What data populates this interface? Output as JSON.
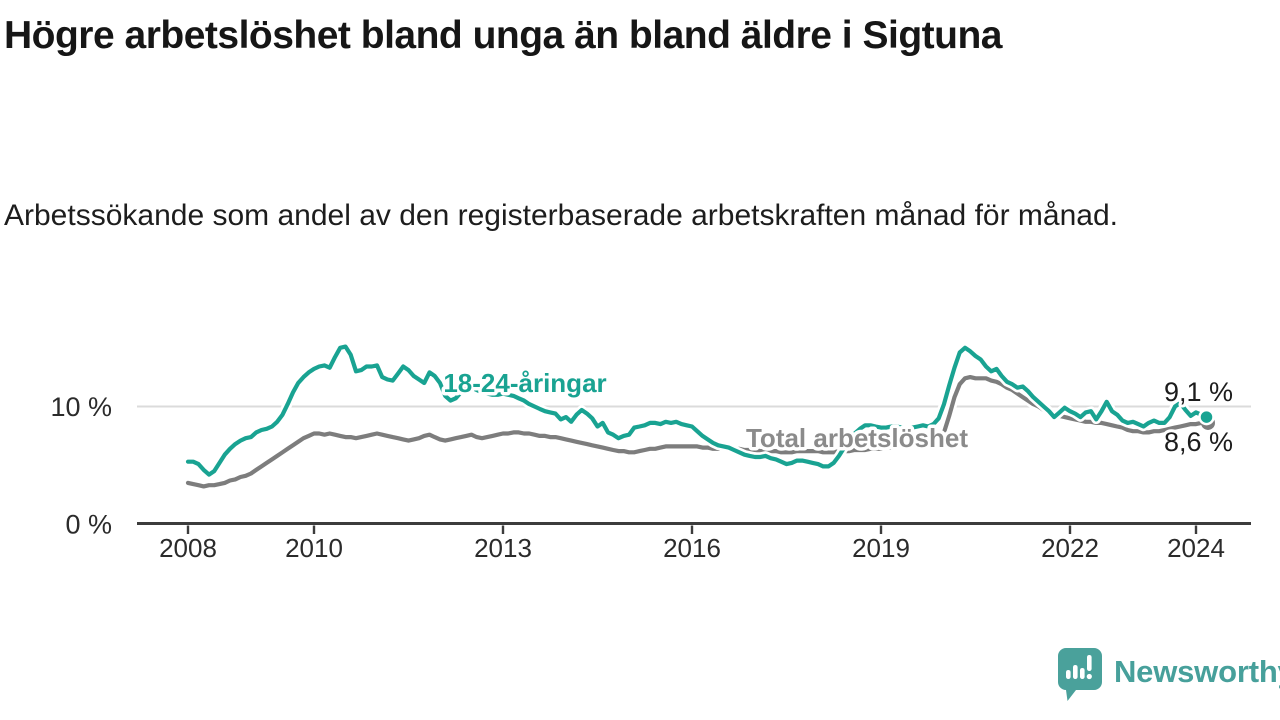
{
  "branding": {
    "logo_text": "Newsworthy",
    "logo_icon": "newsworthy-speech-bubble-bar-chart-icon",
    "logo_color": "#4aa19b"
  },
  "chart_data": {
    "type": "line",
    "title": "Högre arbetslöshet bland unga än bland äldre i Sigtuna",
    "subtitle": "Arbetssökande som andel av den registerbaserade arbetskraften månad för månad.",
    "x_unit": "monthly, fractional years",
    "x_start": 2008.0,
    "x_step_years": 0.083333,
    "xlim": [
      2007.2,
      2024.9
    ],
    "ylim": [
      0,
      16.5
    ],
    "grid": "single horizontal gridline at 10 %",
    "legend_position": "inline labels on lines",
    "x_ticks": [
      {
        "value": 2008,
        "label": "2008"
      },
      {
        "value": 2010,
        "label": "2010"
      },
      {
        "value": 2013,
        "label": "2013"
      },
      {
        "value": 2016,
        "label": "2016"
      },
      {
        "value": 2019,
        "label": "2019"
      },
      {
        "value": 2022,
        "label": "2022"
      },
      {
        "value": 2024,
        "label": "2024"
      }
    ],
    "y_ticks": [
      {
        "value": 10,
        "label": "10 %"
      },
      {
        "value": 0,
        "label": "0 %"
      }
    ],
    "series": [
      {
        "name": "Total arbetslöshet",
        "label": "Total arbetslöshet",
        "color": "#7d7d7d",
        "label_color": "#8b8b8b",
        "end_label": "8,6 %",
        "end_value": 8.6,
        "values": [
          3.5,
          3.4,
          3.3,
          3.2,
          3.3,
          3.3,
          3.4,
          3.5,
          3.7,
          3.8,
          4.0,
          4.1,
          4.3,
          4.6,
          4.9,
          5.2,
          5.5,
          5.8,
          6.1,
          6.4,
          6.7,
          7.0,
          7.3,
          7.5,
          7.7,
          7.7,
          7.6,
          7.7,
          7.6,
          7.5,
          7.4,
          7.4,
          7.3,
          7.4,
          7.5,
          7.6,
          7.7,
          7.6,
          7.5,
          7.4,
          7.3,
          7.2,
          7.1,
          7.2,
          7.3,
          7.5,
          7.6,
          7.4,
          7.2,
          7.1,
          7.2,
          7.3,
          7.4,
          7.5,
          7.6,
          7.4,
          7.3,
          7.4,
          7.5,
          7.6,
          7.7,
          7.7,
          7.8,
          7.8,
          7.7,
          7.7,
          7.6,
          7.5,
          7.5,
          7.4,
          7.4,
          7.3,
          7.2,
          7.1,
          7.0,
          6.9,
          6.8,
          6.7,
          6.6,
          6.5,
          6.4,
          6.3,
          6.2,
          6.2,
          6.1,
          6.1,
          6.2,
          6.3,
          6.4,
          6.4,
          6.5,
          6.6,
          6.6,
          6.6,
          6.6,
          6.6,
          6.6,
          6.6,
          6.5,
          6.5,
          6.4,
          6.4,
          6.5,
          6.5,
          6.4,
          6.4,
          6.3,
          6.3,
          6.3,
          6.2,
          6.2,
          6.2,
          6.2,
          6.1,
          6.1,
          6.1,
          6.2,
          6.2,
          6.2,
          6.2,
          6.2,
          6.1,
          6.1,
          6.1,
          6.2,
          6.2,
          6.2,
          6.3,
          6.3,
          6.3,
          6.4,
          6.4,
          6.4,
          6.5,
          6.5,
          6.6,
          6.6,
          6.7,
          6.7,
          6.8,
          6.8,
          6.9,
          7.0,
          7.2,
          7.8,
          9.2,
          10.8,
          11.9,
          12.4,
          12.5,
          12.4,
          12.4,
          12.4,
          12.2,
          12.1,
          11.9,
          11.6,
          11.4,
          11.1,
          10.8,
          10.5,
          10.2,
          10.0,
          9.7,
          9.5,
          9.3,
          9.2,
          9.1,
          9.0,
          8.9,
          8.8,
          8.7,
          8.7,
          8.6,
          8.6,
          8.5,
          8.4,
          8.3,
          8.2,
          8.0,
          7.9,
          7.9,
          7.8,
          7.8,
          7.9,
          7.9,
          8.0,
          8.1,
          8.2,
          8.3,
          8.4,
          8.5,
          8.5,
          8.6,
          8.6
        ]
      },
      {
        "name": "18-24-åringar",
        "label": "18-24-åringar",
        "color": "#19a392",
        "label_color": "#19a392",
        "end_label": "9,1 %",
        "end_value": 9.1,
        "values": [
          5.3,
          5.3,
          5.1,
          4.6,
          4.2,
          4.5,
          5.2,
          5.9,
          6.4,
          6.8,
          7.1,
          7.3,
          7.4,
          7.8,
          8.0,
          8.1,
          8.3,
          8.7,
          9.3,
          10.2,
          11.2,
          12.0,
          12.5,
          12.9,
          13.2,
          13.4,
          13.5,
          13.3,
          14.2,
          15.0,
          15.1,
          14.4,
          13.0,
          13.1,
          13.4,
          13.4,
          13.5,
          12.5,
          12.3,
          12.2,
          12.8,
          13.4,
          13.1,
          12.6,
          12.3,
          12.0,
          12.9,
          12.6,
          12.0,
          10.9,
          10.5,
          10.7,
          11.2,
          11.5,
          11.6,
          11.4,
          11.2,
          11.1,
          11.0,
          11.0,
          11.1,
          11.0,
          10.9,
          10.7,
          10.5,
          10.2,
          10.0,
          9.8,
          9.6,
          9.5,
          9.4,
          8.9,
          9.1,
          8.7,
          9.3,
          9.7,
          9.4,
          9.0,
          8.3,
          8.6,
          7.8,
          7.6,
          7.3,
          7.5,
          7.6,
          8.2,
          8.3,
          8.4,
          8.6,
          8.6,
          8.5,
          8.7,
          8.6,
          8.7,
          8.5,
          8.4,
          8.3,
          7.9,
          7.5,
          7.2,
          6.9,
          6.7,
          6.6,
          6.5,
          6.3,
          6.1,
          5.9,
          5.8,
          5.7,
          5.7,
          5.8,
          5.6,
          5.5,
          5.3,
          5.1,
          5.2,
          5.4,
          5.4,
          5.3,
          5.2,
          5.1,
          4.9,
          4.9,
          5.2,
          5.8,
          6.5,
          7.1,
          7.7,
          8.1,
          8.4,
          8.4,
          8.3,
          8.2,
          8.2,
          8.3,
          8.3,
          8.2,
          8.1,
          8.2,
          8.3,
          8.4,
          8.3,
          8.5,
          9.0,
          10.2,
          11.8,
          13.3,
          14.6,
          15.0,
          14.7,
          14.3,
          14.0,
          13.4,
          13.0,
          13.2,
          12.6,
          12.1,
          11.9,
          11.6,
          11.7,
          11.3,
          10.8,
          10.4,
          10.0,
          9.6,
          9.1,
          9.5,
          9.9,
          9.6,
          9.4,
          9.1,
          9.5,
          9.6,
          8.9,
          9.6,
          10.4,
          9.6,
          9.3,
          8.8,
          8.6,
          8.7,
          8.5,
          8.3,
          8.6,
          8.8,
          8.6,
          8.6,
          9.1,
          10.0,
          10.3,
          9.7,
          9.2,
          9.5,
          9.3,
          9.1
        ]
      }
    ]
  }
}
